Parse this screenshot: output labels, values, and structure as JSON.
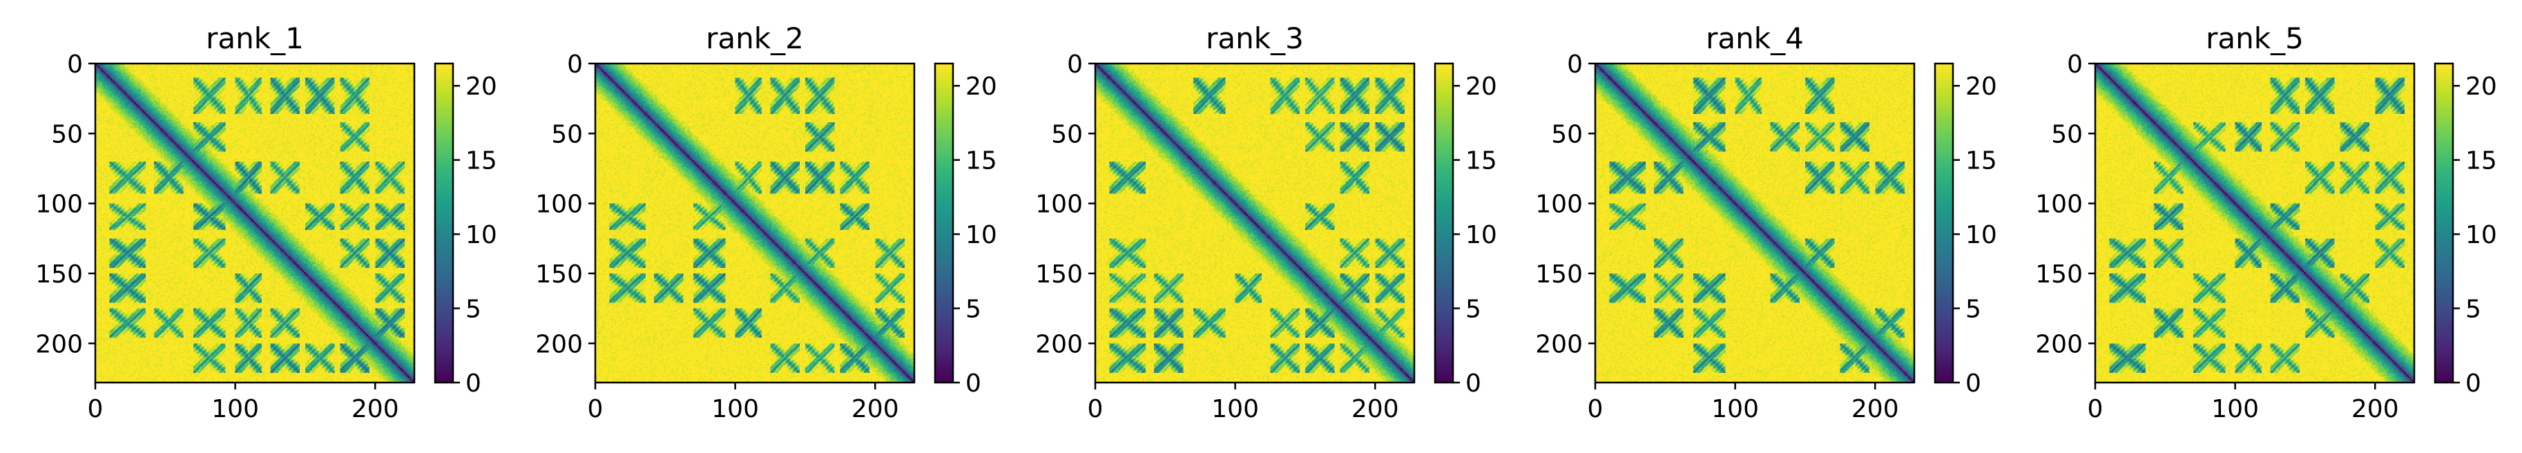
{
  "chart_data": [
    {
      "type": "heatmap",
      "title": "rank_1",
      "xlabel": "",
      "ylabel": "",
      "xlim": [
        0,
        228
      ],
      "ylim": [
        228,
        0
      ],
      "x_ticks": [
        "0",
        "100",
        "200"
      ],
      "y_ticks": [
        "0",
        "50",
        "100",
        "150",
        "200"
      ],
      "colorbar": {
        "min": 0,
        "max": 21.5,
        "ticks": [
          "0",
          "5",
          "10",
          "15",
          "20"
        ],
        "colormap": "viridis"
      },
      "size": 228,
      "description_values": "Predicted distance map (symmetric); diagonal ~0, saturated ~21.5 away from contacts"
    },
    {
      "type": "heatmap",
      "title": "rank_2",
      "xlabel": "",
      "ylabel": "",
      "xlim": [
        0,
        228
      ],
      "ylim": [
        228,
        0
      ],
      "x_ticks": [
        "0",
        "100",
        "200"
      ],
      "y_ticks": [
        "0",
        "50",
        "100",
        "150",
        "200"
      ],
      "colorbar": {
        "min": 0,
        "max": 21.5,
        "ticks": [
          "0",
          "5",
          "10",
          "15",
          "20"
        ],
        "colormap": "viridis"
      },
      "size": 228
    },
    {
      "type": "heatmap",
      "title": "rank_3",
      "xlabel": "",
      "ylabel": "",
      "xlim": [
        0,
        228
      ],
      "ylim": [
        228,
        0
      ],
      "x_ticks": [
        "0",
        "100",
        "200"
      ],
      "y_ticks": [
        "0",
        "50",
        "100",
        "150",
        "200"
      ],
      "colorbar": {
        "min": 0,
        "max": 21.5,
        "ticks": [
          "0",
          "5",
          "10",
          "15",
          "20"
        ],
        "colormap": "viridis"
      },
      "size": 228
    },
    {
      "type": "heatmap",
      "title": "rank_4",
      "xlabel": "",
      "ylabel": "",
      "xlim": [
        0,
        228
      ],
      "ylim": [
        228,
        0
      ],
      "x_ticks": [
        "0",
        "100",
        "200"
      ],
      "y_ticks": [
        "0",
        "50",
        "100",
        "150",
        "200"
      ],
      "colorbar": {
        "min": 0,
        "max": 21.5,
        "ticks": [
          "0",
          "5",
          "10",
          "15",
          "20"
        ],
        "colormap": "viridis"
      },
      "size": 228
    },
    {
      "type": "heatmap",
      "title": "rank_5",
      "xlabel": "",
      "ylabel": "",
      "xlim": [
        0,
        228
      ],
      "ylim": [
        228,
        0
      ],
      "x_ticks": [
        "0",
        "100",
        "200"
      ],
      "y_ticks": [
        "0",
        "50",
        "100",
        "150",
        "200"
      ],
      "colorbar": {
        "min": 0,
        "max": 21.5,
        "ticks": [
          "0",
          "5",
          "10",
          "15",
          "20"
        ],
        "colormap": "viridis"
      },
      "size": 228
    }
  ],
  "colors": {
    "viridis_stops": [
      "#440154",
      "#482878",
      "#3e4989",
      "#31688e",
      "#26828e",
      "#1f9e89",
      "#35b779",
      "#6ece58",
      "#b5de2b",
      "#fde725"
    ],
    "axis": "#000000",
    "background": "#ffffff"
  }
}
